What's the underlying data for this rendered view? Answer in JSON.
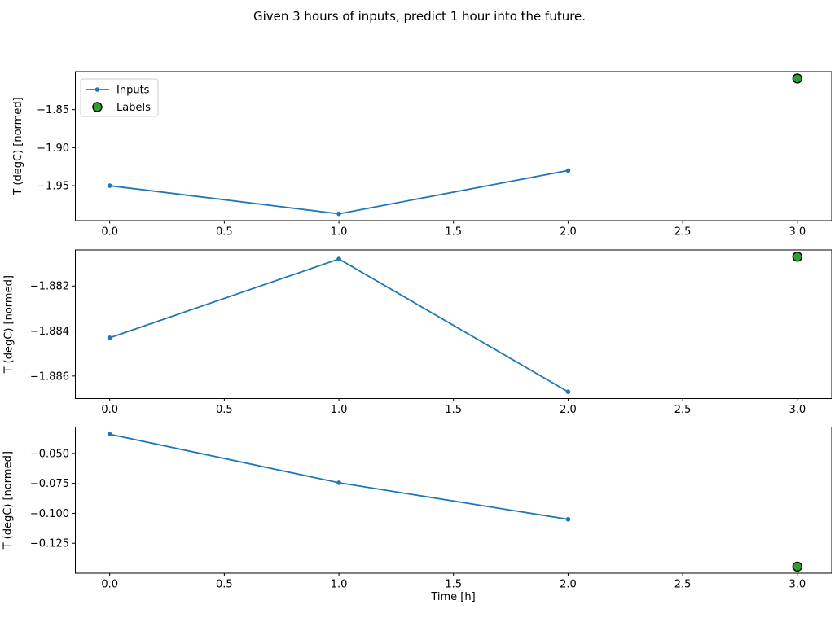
{
  "figure": {
    "title": "Given 3 hours of inputs, predict 1 hour into the future.",
    "xlabel": "Time [h]"
  },
  "style": {
    "inputs_color": "#1f77b4",
    "labels_color": "#2ca02c",
    "labels_edge_color": "#000000",
    "axes_color": "#000000",
    "legend_border_color": "#cccccc"
  },
  "legend": {
    "items": [
      {
        "label": "Inputs",
        "sample": "line-with-dot",
        "color": "#1f77b4"
      },
      {
        "label": "Labels",
        "sample": "filled-circle",
        "color": "#2ca02c",
        "edge": "#000000"
      }
    ]
  },
  "chart_data": [
    {
      "type": "line",
      "title": "",
      "xlabel": "",
      "ylabel": "T (degC) [normed]",
      "series": [
        {
          "name": "Inputs",
          "type": "line",
          "x": [
            0,
            1,
            2
          ],
          "y": [
            -1.95,
            -1.987,
            -1.93
          ]
        },
        {
          "name": "Labels",
          "type": "scatter",
          "x": [
            3
          ],
          "y": [
            -1.809
          ]
        }
      ],
      "xlim": [
        -0.15,
        3.15
      ],
      "ylim": [
        -1.996,
        -1.8
      ],
      "x_tick_values": [
        0,
        0.5,
        1,
        1.5,
        2,
        2.5,
        3
      ],
      "x_tick_labels": [
        "0.0",
        "0.5",
        "1.0",
        "1.5",
        "2.0",
        "2.5",
        "3.0"
      ],
      "y_tick_values": [
        -1.85,
        -1.9,
        -1.95
      ],
      "y_tick_labels": [
        "−1.85",
        "−1.90",
        "−1.95"
      ],
      "grid": false,
      "legend": true,
      "legend_position": "upper left"
    },
    {
      "type": "line",
      "title": "",
      "xlabel": "",
      "ylabel": "T (degC) [normed]",
      "series": [
        {
          "name": "Inputs",
          "type": "line",
          "x": [
            0,
            1,
            2
          ],
          "y": [
            -1.8843,
            -1.8808,
            -1.8867
          ]
        },
        {
          "name": "Labels",
          "type": "scatter",
          "x": [
            3
          ],
          "y": [
            -1.8807
          ]
        }
      ],
      "xlim": [
        -0.15,
        3.15
      ],
      "ylim": [
        -1.887,
        -1.8804
      ],
      "x_tick_values": [
        0,
        0.5,
        1,
        1.5,
        2,
        2.5,
        3
      ],
      "x_tick_labels": [
        "0.0",
        "0.5",
        "1.0",
        "1.5",
        "2.0",
        "2.5",
        "3.0"
      ],
      "y_tick_values": [
        -1.882,
        -1.884,
        -1.886
      ],
      "y_tick_labels": [
        "−1.882",
        "−1.884",
        "−1.886"
      ],
      "grid": false,
      "legend": false
    },
    {
      "type": "line",
      "title": "",
      "xlabel": "Time [h]",
      "ylabel": "T (degC) [normed]",
      "series": [
        {
          "name": "Inputs",
          "type": "line",
          "x": [
            0,
            1,
            2
          ],
          "y": [
            -0.034,
            -0.0745,
            -0.105
          ]
        },
        {
          "name": "Labels",
          "type": "scatter",
          "x": [
            3
          ],
          "y": [
            -0.1445
          ]
        }
      ],
      "xlim": [
        -0.15,
        3.15
      ],
      "ylim": [
        -0.15,
        -0.028
      ],
      "x_tick_values": [
        0,
        0.5,
        1,
        1.5,
        2,
        2.5,
        3
      ],
      "x_tick_labels": [
        "0.0",
        "0.5",
        "1.0",
        "1.5",
        "2.0",
        "2.5",
        "3.0"
      ],
      "y_tick_values": [
        -0.05,
        -0.075,
        -0.1,
        -0.125
      ],
      "y_tick_labels": [
        "−0.050",
        "−0.075",
        "−0.100",
        "−0.125"
      ],
      "grid": false,
      "legend": false
    }
  ]
}
